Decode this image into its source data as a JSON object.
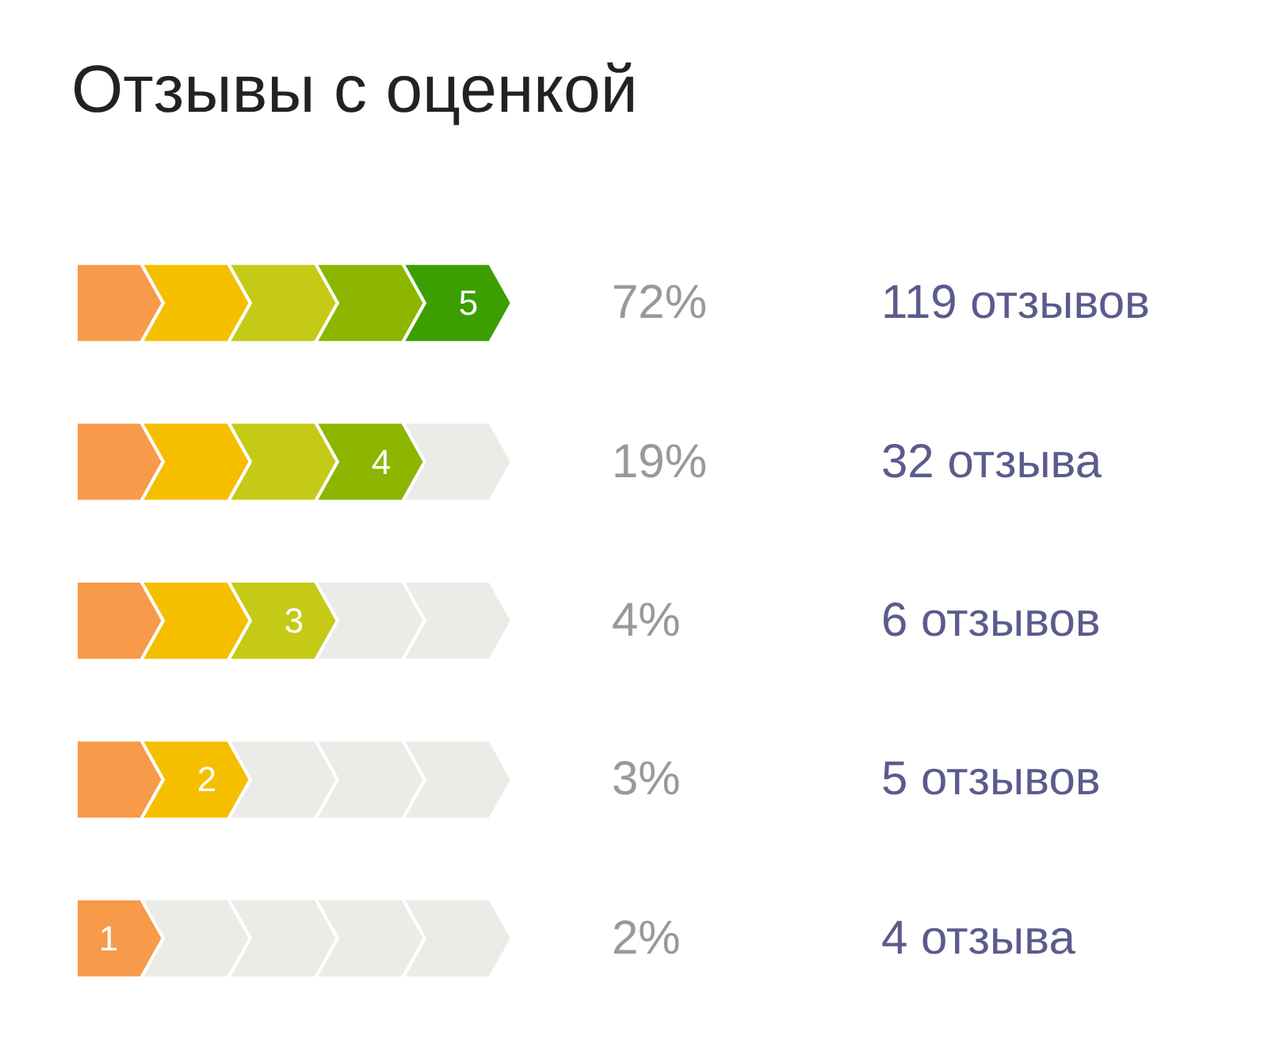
{
  "chart_data": {
    "type": "other",
    "title": "Отзывы с оценкой",
    "categories": [
      "5",
      "4",
      "3",
      "2",
      "1"
    ],
    "colors": [
      "#3c9e00",
      "#8db600",
      "#c4ca16",
      "#f5bf00",
      "#f79a4a"
    ],
    "series": [
      {
        "color": "#999999",
        "values": [
          72,
          19,
          4,
          3,
          2
        ],
        "value_labels": [
          "72%",
          "19%",
          "4%",
          "3%",
          "2%"
        ]
      },
      {
        "color": "#5b5b8c",
        "values": [
          119,
          32,
          6,
          5,
          4
        ],
        "value_labels": [
          "119 отзывов",
          "32 отзыва",
          "6 отзывов",
          "5 отзывов",
          "4 отзыва"
        ]
      }
    ]
  }
}
